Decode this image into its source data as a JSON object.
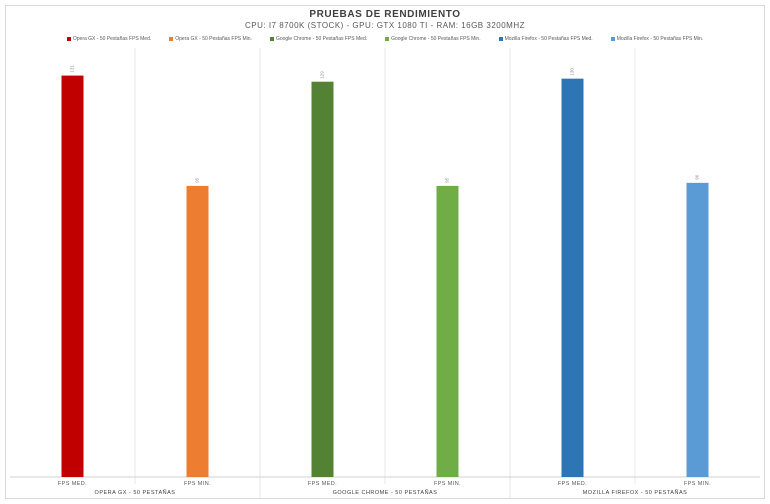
{
  "chart_data": {
    "type": "bar",
    "title": "PRUEBAS DE RENDIMIENTO",
    "subtitle": "CPU: I7 8700K (STOCK) - GPU: GTX 1080 TI - RAM: 16GB 3200MHZ",
    "groups": [
      {
        "label": "OPERA GX - 50 PESTAÑAS",
        "bars": [
          {
            "category": "FPS MED.",
            "series": "Opera GX - 50 Pestañas FPS Med.",
            "value": 131,
            "label": "131",
            "color": "#c00000"
          },
          {
            "category": "FPS MIN.",
            "series": "Opera GX - 50 Pestañas FPS Min.",
            "value": 95,
            "label": "95",
            "color": "#ed7d31"
          }
        ]
      },
      {
        "label": "GOOGLE CHROME - 50 PESTAÑAS",
        "bars": [
          {
            "category": "FPS MED.",
            "series": "Google Chrome - 50 Pestañas FPS Med.",
            "value": 129,
            "label": "129",
            "color": "#548235"
          },
          {
            "category": "FPS MIN.",
            "series": "Google Chrome - 50 Pestañas FPS Min.",
            "value": 95,
            "label": "95",
            "color": "#70ad47"
          }
        ]
      },
      {
        "label": "MOZILLA FIREFOX - 50 PESTAÑAS",
        "bars": [
          {
            "category": "FPS MED.",
            "series": "Mozilla Firefox - 50 Pestañas FPS Med.",
            "value": 130,
            "label": "130",
            "color": "#2e75b6"
          },
          {
            "category": "FPS MIN.",
            "series": "Mozilla Firefox - 50 Pestañas FPS Min.",
            "value": 96,
            "label": "96",
            "color": "#5b9bd5"
          }
        ]
      }
    ],
    "legend": [
      {
        "name": "Opera GX - 50 Pestañas FPS Med.",
        "color": "#c00000"
      },
      {
        "name": "Opera GX - 50 Pestañas FPS Min.",
        "color": "#ed7d31"
      },
      {
        "name": "Google Chrome - 50 Pestañas FPS Med.",
        "color": "#548235"
      },
      {
        "name": "Google Chrome - 50 Pestañas FPS Min.",
        "color": "#70ad47"
      },
      {
        "name": "Mozilla Firefox - 50 Pestañas FPS Med.",
        "color": "#2e75b6"
      },
      {
        "name": "Mozilla Firefox - 50 Pestañas FPS Min.",
        "color": "#5b9bd5"
      }
    ],
    "ylim": [
      0,
      140
    ],
    "grid": true,
    "legend_position": "top"
  }
}
